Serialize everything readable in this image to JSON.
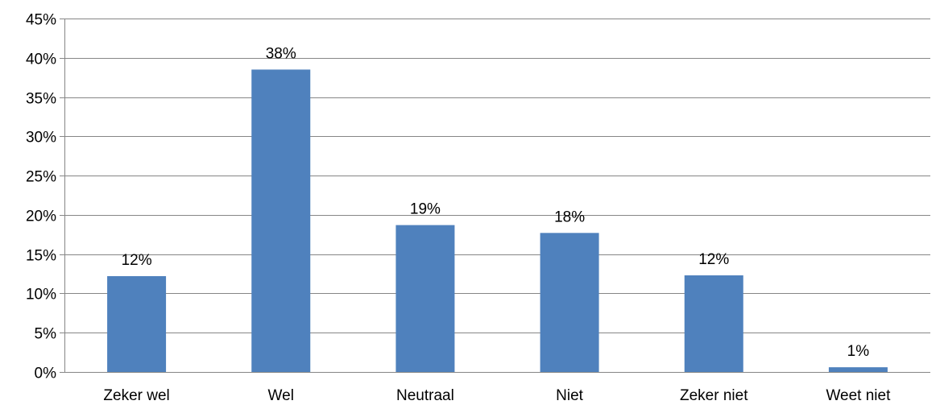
{
  "chart_data": {
    "type": "bar",
    "title": "",
    "xlabel": "",
    "ylabel": "",
    "categories": [
      "Zeker wel",
      "Wel",
      "Neutraal",
      "Niet",
      "Zeker niet",
      "Weet niet"
    ],
    "values": [
      12.2,
      38.5,
      18.7,
      17.7,
      12.3,
      0.6
    ],
    "data_labels": [
      "12%",
      "38%",
      "19%",
      "18%",
      "12%",
      "1%"
    ],
    "ylim": [
      0,
      45
    ],
    "yticks": [
      0,
      5,
      10,
      15,
      20,
      25,
      30,
      35,
      40,
      45
    ],
    "ytick_labels": [
      "0%",
      "5%",
      "10%",
      "15%",
      "20%",
      "25%",
      "30%",
      "35%",
      "40%",
      "45%"
    ],
    "grid": "horizontal",
    "legend": "none",
    "bar_color": "#4F81BD"
  }
}
